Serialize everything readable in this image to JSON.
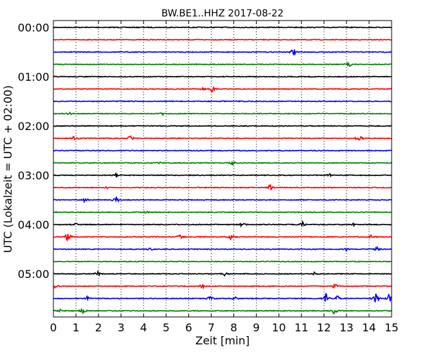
{
  "chart_data": {
    "type": "line",
    "title": "BW.BE1..HHZ 2017-08-22",
    "xlabel": "Zeit  [min]",
    "ylabel": "UTC (Lokalzeit = UTC + 02:00)",
    "xlim": [
      0,
      15
    ],
    "x_ticks": [
      "0",
      "1",
      "2",
      "3",
      "4",
      "5",
      "6",
      "7",
      "8",
      "9",
      "10",
      "11",
      "12",
      "13",
      "14",
      "15"
    ],
    "grid": "vertical dotted",
    "row_interval_min": 15,
    "colors": [
      "#000000",
      "#ff0000",
      "#0000ff",
      "#008000"
    ],
    "y_ticks": [
      {
        "label": "00:00",
        "row": 0
      },
      {
        "label": "01:00",
        "row": 4
      },
      {
        "label": "02:00",
        "row": 8
      },
      {
        "label": "03:00",
        "row": 12
      },
      {
        "label": "04:00",
        "row": 16
      },
      {
        "label": "05:00",
        "row": 20
      }
    ],
    "series": [
      {
        "start": "00:00",
        "events": []
      },
      {
        "start": "00:15",
        "events": []
      },
      {
        "start": "00:30",
        "events": [
          {
            "t": 10.65,
            "amp": 7
          }
        ]
      },
      {
        "start": "00:45",
        "events": [
          {
            "t": 13.1,
            "amp": 5
          }
        ]
      },
      {
        "start": "01:00",
        "events": []
      },
      {
        "start": "01:15",
        "events": [
          {
            "t": 7.05,
            "amp": 4
          },
          {
            "t": 6.6,
            "amp": 2
          }
        ]
      },
      {
        "start": "01:30",
        "events": []
      },
      {
        "start": "01:45",
        "events": [
          {
            "t": 0.7,
            "amp": 2
          },
          {
            "t": 4.85,
            "amp": 2
          }
        ]
      },
      {
        "start": "02:00",
        "events": []
      },
      {
        "start": "02:15",
        "events": [
          {
            "t": 0.9,
            "amp": 3
          },
          {
            "t": 3.4,
            "amp": 6
          },
          {
            "t": 13.55,
            "amp": 6
          }
        ]
      },
      {
        "start": "02:30",
        "events": []
      },
      {
        "start": "02:45",
        "events": [
          {
            "t": 4.75,
            "amp": 2
          },
          {
            "t": 7.95,
            "amp": 3
          }
        ]
      },
      {
        "start": "03:00",
        "events": [
          {
            "t": 2.8,
            "amp": 3
          },
          {
            "t": 12.25,
            "amp": 3
          }
        ]
      },
      {
        "start": "03:15",
        "events": [
          {
            "t": 9.6,
            "amp": 5
          },
          {
            "t": 2.4,
            "amp": 2
          }
        ]
      },
      {
        "start": "03:30",
        "events": [
          {
            "t": 1.4,
            "amp": 5
          },
          {
            "t": 2.8,
            "amp": 5
          }
        ]
      },
      {
        "start": "03:45",
        "events": [
          {
            "t": 4.1,
            "amp": 2
          }
        ]
      },
      {
        "start": "04:00",
        "events": [
          {
            "t": 1.0,
            "amp": 2
          },
          {
            "t": 8.4,
            "amp": 5
          },
          {
            "t": 11.05,
            "amp": 4
          },
          {
            "t": 13.3,
            "amp": 2
          }
        ]
      },
      {
        "start": "04:15",
        "events": [
          {
            "t": 0.65,
            "amp": 9
          },
          {
            "t": 5.6,
            "amp": 5
          },
          {
            "t": 7.9,
            "amp": 5
          },
          {
            "t": 14.1,
            "amp": 3
          }
        ]
      },
      {
        "start": "04:30",
        "events": [
          {
            "t": 4.3,
            "amp": 2
          },
          {
            "t": 13.0,
            "amp": 2
          },
          {
            "t": 14.35,
            "amp": 3
          }
        ]
      },
      {
        "start": "04:45",
        "events": []
      },
      {
        "start": "05:00",
        "events": [
          {
            "t": 1.95,
            "amp": 4
          },
          {
            "t": 7.6,
            "amp": 3
          },
          {
            "t": 11.6,
            "amp": 3
          }
        ]
      },
      {
        "start": "05:15",
        "events": [
          {
            "t": 0.05,
            "amp": 4
          },
          {
            "t": 6.6,
            "amp": 4
          },
          {
            "t": 12.5,
            "amp": 5
          }
        ]
      },
      {
        "start": "05:30",
        "events": [
          {
            "t": 1.5,
            "amp": 3
          },
          {
            "t": 6.95,
            "amp": 4
          },
          {
            "t": 8.05,
            "amp": 3
          },
          {
            "t": 12.1,
            "amp": 9
          },
          {
            "t": 12.6,
            "amp": 6
          },
          {
            "t": 14.3,
            "amp": 10
          },
          {
            "t": 14.9,
            "amp": 8
          }
        ]
      },
      {
        "start": "05:45",
        "events": [
          {
            "t": 0.3,
            "amp": 4
          },
          {
            "t": 1.3,
            "amp": 4
          },
          {
            "t": 12.45,
            "amp": 6
          }
        ]
      }
    ]
  }
}
